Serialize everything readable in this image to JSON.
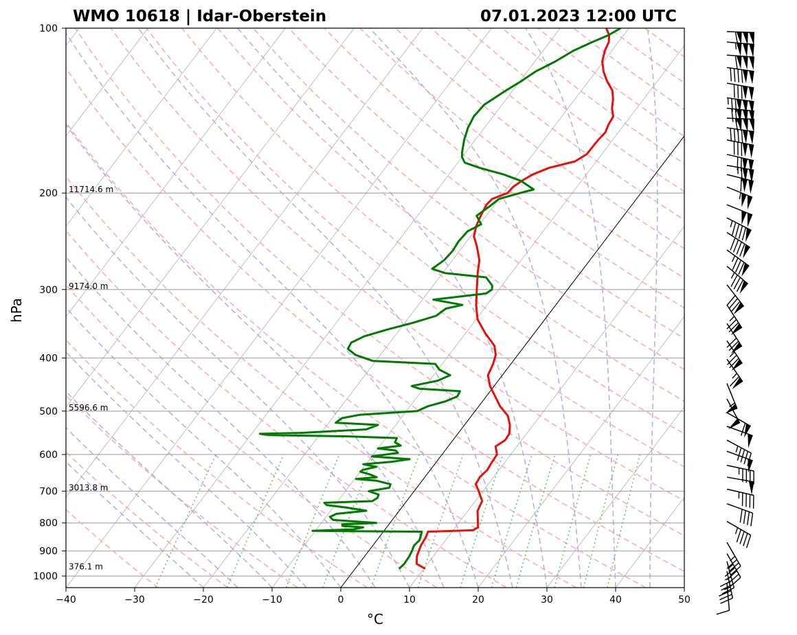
{
  "chart_data": {
    "type": "line",
    "subtype": "skew-T log-P sounding",
    "title_left": "WMO 10618 | Idar-Oberstein",
    "title_right": "07.01.2023 12:00 UTC",
    "xlabel": "°C",
    "ylabel": "hPa",
    "xlim": [
      -40,
      50
    ],
    "ylim": [
      1050,
      100
    ],
    "x_ticks": [
      -40,
      -30,
      -20,
      -10,
      0,
      10,
      20,
      30,
      40,
      50
    ],
    "x_tick_labels": [
      "−40",
      "−30",
      "−20",
      "−10",
      "0",
      "10",
      "20",
      "30",
      "40",
      "50"
    ],
    "y_ticks": [
      100,
      200,
      300,
      400,
      500,
      600,
      700,
      800,
      900,
      1000
    ],
    "y_tick_labels": [
      "100",
      "200",
      "300",
      "400",
      "500",
      "600",
      "700",
      "800",
      "900",
      "1000"
    ],
    "height_labels": [
      {
        "p": 200,
        "text": "11714.6 m"
      },
      {
        "p": 300,
        "text": "9174.0 m"
      },
      {
        "p": 500,
        "text": "5596.6 m"
      },
      {
        "p": 700,
        "text": "3013.8 m"
      },
      {
        "p": 975,
        "text": "376.1 m"
      }
    ],
    "colors": {
      "temperature": "#e8100a",
      "dewpoint": "#007a00",
      "dry_adiabat": "#f7a8a8",
      "moist_adiabat": "#a9a9f2",
      "mixing_ratio": "#5cb85c",
      "isotherm": "#888888",
      "isobar": "#aaaaaa"
    },
    "series": [
      {
        "name": "Temperature",
        "points": [
          [
            970,
            10.2
          ],
          [
            950,
            8.4
          ],
          [
            920,
            7.6
          ],
          [
            880,
            7.0
          ],
          [
            850,
            6.8
          ],
          [
            830,
            6.5
          ],
          [
            825,
            12.9
          ],
          [
            815,
            13.3
          ],
          [
            800,
            12.8
          ],
          [
            780,
            12.1
          ],
          [
            760,
            11.4
          ],
          [
            730,
            11.0
          ],
          [
            715,
            10.2
          ],
          [
            700,
            9.4
          ],
          [
            680,
            8.2
          ],
          [
            660,
            8.0
          ],
          [
            640,
            8.3
          ],
          [
            620,
            8.1
          ],
          [
            600,
            8.0
          ],
          [
            580,
            6.9
          ],
          [
            565,
            7.6
          ],
          [
            550,
            7.5
          ],
          [
            530,
            6.6
          ],
          [
            510,
            5.3
          ],
          [
            490,
            3.1
          ],
          [
            470,
            1.3
          ],
          [
            450,
            -0.6
          ],
          [
            430,
            -2.1
          ],
          [
            410,
            -2.6
          ],
          [
            395,
            -3.2
          ],
          [
            380,
            -4.4
          ],
          [
            360,
            -7.2
          ],
          [
            340,
            -9.8
          ],
          [
            320,
            -11.6
          ],
          [
            300,
            -13.2
          ],
          [
            280,
            -14.9
          ],
          [
            265,
            -16.1
          ],
          [
            250,
            -18.0
          ],
          [
            240,
            -19.5
          ],
          [
            230,
            -20.3
          ],
          [
            220,
            -20.8
          ],
          [
            210,
            -21.2
          ],
          [
            205,
            -21.0
          ],
          [
            200,
            -19.4
          ],
          [
            195,
            -19.3
          ],
          [
            190,
            -18.7
          ],
          [
            185,
            -17.8
          ],
          [
            180,
            -16.2
          ],
          [
            175,
            -13.1
          ],
          [
            170,
            -12.2
          ],
          [
            160,
            -12.1
          ],
          [
            155,
            -11.9
          ],
          [
            150,
            -12.3
          ],
          [
            145,
            -12.5
          ],
          [
            140,
            -13.6
          ],
          [
            135,
            -14.4
          ],
          [
            130,
            -15.5
          ],
          [
            125,
            -17.3
          ],
          [
            120,
            -18.9
          ],
          [
            115,
            -20.2
          ],
          [
            110,
            -21.0
          ],
          [
            106,
            -21.4
          ],
          [
            103,
            -22.1
          ],
          [
            100,
            -23.3
          ]
        ]
      },
      {
        "name": "Dewpoint",
        "points": [
          [
            970,
            6.4
          ],
          [
            950,
            6.6
          ],
          [
            920,
            6.5
          ],
          [
            900,
            6.3
          ],
          [
            880,
            6.0
          ],
          [
            860,
            6.2
          ],
          [
            850,
            6.0
          ],
          [
            830,
            5.6
          ],
          [
            827,
            -10.4
          ],
          [
            822,
            -4.6
          ],
          [
            815,
            -3.4
          ],
          [
            810,
            -6.6
          ],
          [
            805,
            -6.8
          ],
          [
            800,
            -2.0
          ],
          [
            790,
            -8.6
          ],
          [
            780,
            -9.4
          ],
          [
            770,
            -8.8
          ],
          [
            760,
            -4.8
          ],
          [
            750,
            -8.0
          ],
          [
            742,
            -11.2
          ],
          [
            735,
            -11.8
          ],
          [
            730,
            -5.0
          ],
          [
            720,
            -4.6
          ],
          [
            710,
            -4.8
          ],
          [
            700,
            -6.6
          ],
          [
            690,
            -4.0
          ],
          [
            680,
            -4.2
          ],
          [
            670,
            -6.6
          ],
          [
            665,
            -9.8
          ],
          [
            660,
            -7.0
          ],
          [
            652,
            -8.4
          ],
          [
            645,
            -10.0
          ],
          [
            640,
            -9.8
          ],
          [
            632,
            -8.2
          ],
          [
            625,
            -10.4
          ],
          [
            619,
            -6.6
          ],
          [
            612,
            -4.2
          ],
          [
            605,
            -10.0
          ],
          [
            596,
            -6.6
          ],
          [
            590,
            -7.2
          ],
          [
            585,
            -10.0
          ],
          [
            578,
            -7.0
          ],
          [
            570,
            -8.2
          ],
          [
            560,
            -8.4
          ],
          [
            556,
            -16.0
          ],
          [
            553,
            -27.4
          ],
          [
            550,
            -28.8
          ],
          [
            548,
            -23.0
          ],
          [
            540,
            -13.8
          ],
          [
            530,
            -12.6
          ],
          [
            525,
            -19.0
          ],
          [
            515,
            -18.6
          ],
          [
            508,
            -16.4
          ],
          [
            500,
            -8.4
          ],
          [
            490,
            -7.4
          ],
          [
            480,
            -5.4
          ],
          [
            470,
            -4.2
          ],
          [
            460,
            -4.4
          ],
          [
            455,
            -10.6
          ],
          [
            450,
            -12.0
          ],
          [
            440,
            -8.8
          ],
          [
            430,
            -7.6
          ],
          [
            420,
            -9.8
          ],
          [
            410,
            -11.0
          ],
          [
            405,
            -20.4
          ],
          [
            395,
            -23.6
          ],
          [
            385,
            -25.4
          ],
          [
            375,
            -25.6
          ],
          [
            365,
            -24.4
          ],
          [
            355,
            -21.8
          ],
          [
            345,
            -18.8
          ],
          [
            335,
            -16.2
          ],
          [
            325,
            -15.6
          ],
          [
            320,
            -13.6
          ],
          [
            313,
            -18.4
          ],
          [
            305,
            -11.4
          ],
          [
            300,
            -11.0
          ],
          [
            295,
            -11.4
          ],
          [
            285,
            -13.2
          ],
          [
            280,
            -19.6
          ],
          [
            275,
            -22.0
          ],
          [
            265,
            -21.2
          ],
          [
            255,
            -21.0
          ],
          [
            245,
            -21.2
          ],
          [
            235,
            -21.0
          ],
          [
            228,
            -19.8
          ],
          [
            220,
            -21.4
          ],
          [
            212,
            -20.6
          ],
          [
            205,
            -20.0
          ],
          [
            200,
            -17.6
          ],
          [
            197,
            -16.0
          ],
          [
            190,
            -18.8
          ],
          [
            185,
            -22.0
          ],
          [
            180,
            -26.2
          ],
          [
            176,
            -29.0
          ],
          [
            172,
            -30.0
          ],
          [
            168,
            -30.6
          ],
          [
            160,
            -31.6
          ],
          [
            152,
            -32.4
          ],
          [
            145,
            -32.8
          ],
          [
            138,
            -32.6
          ],
          [
            130,
            -31.0
          ],
          [
            125,
            -29.8
          ],
          [
            120,
            -28.8
          ],
          [
            115,
            -27.0
          ],
          [
            110,
            -25.6
          ],
          [
            106,
            -23.8
          ],
          [
            103,
            -22.2
          ],
          [
            100,
            -21.2
          ]
        ]
      }
    ],
    "wind_barbs": [
      {
        "p": 100,
        "ddd": 272,
        "kt": 160
      },
      {
        "p": 106,
        "ddd": 275,
        "kt": 155
      },
      {
        "p": 112,
        "ddd": 274,
        "kt": 160
      },
      {
        "p": 118,
        "ddd": 278,
        "kt": 140
      },
      {
        "p": 126,
        "ddd": 280,
        "kt": 130
      },
      {
        "p": 134,
        "ddd": 278,
        "kt": 175
      },
      {
        "p": 140,
        "ddd": 276,
        "kt": 170
      },
      {
        "p": 146,
        "ddd": 272,
        "kt": 160
      },
      {
        "p": 152,
        "ddd": 278,
        "kt": 140
      },
      {
        "p": 160,
        "ddd": 281,
        "kt": 130
      },
      {
        "p": 170,
        "ddd": 283,
        "kt": 120
      },
      {
        "p": 178,
        "ddd": 280,
        "kt": 115
      },
      {
        "p": 185,
        "ddd": 284,
        "kt": 110
      },
      {
        "p": 195,
        "ddd": 292,
        "kt": 105
      },
      {
        "p": 210,
        "ddd": 292,
        "kt": 100
      },
      {
        "p": 222,
        "ddd": 297,
        "kt": 95
      },
      {
        "p": 236,
        "ddd": 303,
        "kt": 90
      },
      {
        "p": 254,
        "ddd": 306,
        "kt": 85
      },
      {
        "p": 272,
        "ddd": 310,
        "kt": 85
      },
      {
        "p": 294,
        "ddd": 322,
        "kt": 80
      },
      {
        "p": 320,
        "ddd": 327,
        "kt": 75
      },
      {
        "p": 346,
        "ddd": 327,
        "kt": 70
      },
      {
        "p": 372,
        "ddd": 326,
        "kt": 75
      },
      {
        "p": 402,
        "ddd": 325,
        "kt": 65
      },
      {
        "p": 445,
        "ddd": 338,
        "kt": 55
      },
      {
        "p": 475,
        "ddd": 332,
        "kt": 50
      },
      {
        "p": 503,
        "ddd": 300,
        "kt": 60
      },
      {
        "p": 533,
        "ddd": 290,
        "kt": 50
      },
      {
        "p": 565,
        "ddd": 298,
        "kt": 45
      },
      {
        "p": 592,
        "ddd": 290,
        "kt": 50
      },
      {
        "p": 628,
        "ddd": 282,
        "kt": 45
      },
      {
        "p": 660,
        "ddd": 280,
        "kt": 50
      },
      {
        "p": 694,
        "ddd": 283,
        "kt": 45
      },
      {
        "p": 738,
        "ddd": 290,
        "kt": 40
      },
      {
        "p": 795,
        "ddd": 300,
        "kt": 45
      },
      {
        "p": 868,
        "ddd": 330,
        "kt": 35
      },
      {
        "p": 910,
        "ddd": 330,
        "kt": 45
      },
      {
        "p": 940,
        "ddd": 345,
        "kt": 35
      },
      {
        "p": 980,
        "ddd": 348,
        "kt": 35
      },
      {
        "p": 1030,
        "ddd": 355,
        "kt": 10
      }
    ]
  }
}
